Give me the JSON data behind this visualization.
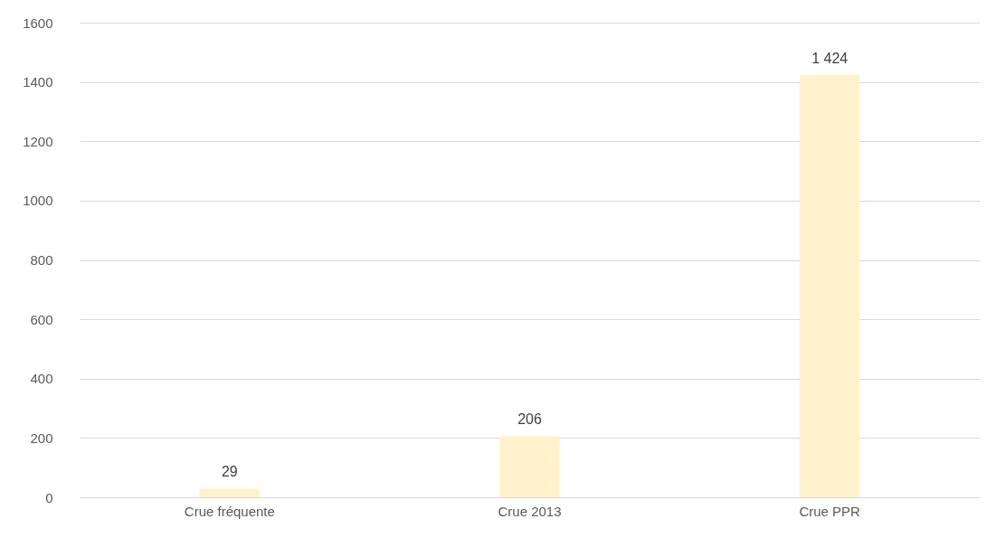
{
  "chart_data": {
    "type": "bar",
    "categories": [
      "Crue fréquente",
      "Crue 2013",
      "Crue PPR"
    ],
    "values": [
      29,
      206,
      1424
    ],
    "value_labels": [
      "29",
      "206",
      "1 424"
    ],
    "color": "#fff2cc",
    "ylim": [
      0,
      1600
    ],
    "yticks": [
      0,
      200,
      400,
      600,
      800,
      1000,
      1200,
      1400,
      1600
    ],
    "grid": "y"
  }
}
